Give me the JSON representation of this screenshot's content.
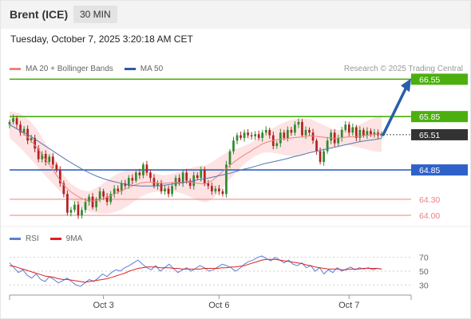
{
  "header": {
    "instrument": "Brent (ICE)",
    "timeframe": "30 MIN",
    "datetime": "Tuesday, October 7, 2025 3:20:18 AM CET"
  },
  "legend": {
    "ma20_label": "MA 20 + Bollinger Bands",
    "ma50_label": "MA 50",
    "credit": "Research © 2025 Trading Central"
  },
  "rsi_legend": {
    "rsi_label": "RSI",
    "ma_label": "9MA"
  },
  "colors": {
    "resistance": "#4caf0f",
    "pivot": "#2f62c8",
    "support": "#f08080",
    "current": "#333333",
    "ma20": "#f08080",
    "ma50": "#5577b0",
    "bollinger_fill": "#fde3e3",
    "candle_up": "#2e8b2e",
    "candle_down": "#b22222",
    "arrow": "#2a5ea8",
    "rsi": "#5b7fd4",
    "rsi_ma": "#e02020"
  },
  "chart_data": [
    {
      "type": "candlestick",
      "ylim": [
        63.88,
        66.6
      ],
      "levels": [
        {
          "label": "66.55",
          "value": 66.55,
          "kind": "resistance"
        },
        {
          "label": "65.85",
          "value": 65.85,
          "kind": "resistance"
        },
        {
          "label": "65.51",
          "value": 65.51,
          "kind": "current"
        },
        {
          "label": "64.85",
          "value": 64.85,
          "kind": "pivot"
        },
        {
          "label": "64.30",
          "value": 64.3,
          "kind": "support"
        },
        {
          "label": "64.00",
          "value": 64.0,
          "kind": "support"
        }
      ],
      "x_ticks": [
        {
          "label": "Oct 3",
          "index": 26
        },
        {
          "label": "Oct 6",
          "index": 58
        },
        {
          "label": "Oct 7",
          "index": 94
        }
      ],
      "closes": [
        65.75,
        65.82,
        65.7,
        65.55,
        65.62,
        65.4,
        65.45,
        65.25,
        65.05,
        65.15,
        65.0,
        65.1,
        64.95,
        64.85,
        64.6,
        64.4,
        64.05,
        64.1,
        64.2,
        64.0,
        64.1,
        64.25,
        64.35,
        64.15,
        64.3,
        64.45,
        64.35,
        64.25,
        64.4,
        64.5,
        64.45,
        64.6,
        64.55,
        64.7,
        64.65,
        64.8,
        64.75,
        64.95,
        64.8,
        64.7,
        64.55,
        64.6,
        64.45,
        64.5,
        64.4,
        64.55,
        64.7,
        64.6,
        64.8,
        64.65,
        64.55,
        64.75,
        64.7,
        64.85,
        64.6,
        64.55,
        64.45,
        64.5,
        64.45,
        64.4,
        64.95,
        65.2,
        65.4,
        65.5,
        65.45,
        65.55,
        65.5,
        65.48,
        65.52,
        65.45,
        65.55,
        65.6,
        65.5,
        65.3,
        65.35,
        65.55,
        65.45,
        65.6,
        65.55,
        65.7,
        65.75,
        65.5,
        65.6,
        65.55,
        65.4,
        65.2,
        65.0,
        65.2,
        65.4,
        65.55,
        65.35,
        65.45,
        65.6,
        65.7,
        65.55,
        65.65,
        65.45,
        65.6,
        65.5,
        65.58,
        65.52,
        65.55,
        65.5,
        65.51
      ],
      "ma20": [
        65.7,
        65.65,
        65.6,
        65.53,
        65.45,
        65.35,
        65.25,
        65.12,
        65.0,
        64.88,
        64.75,
        64.62,
        64.52,
        64.44,
        64.38,
        64.33,
        64.29,
        64.26,
        64.27,
        64.29,
        64.32,
        64.35,
        64.39,
        64.43,
        64.47,
        64.51,
        64.55,
        64.58,
        64.61,
        64.62,
        64.62,
        64.61,
        64.6,
        64.6,
        64.61,
        64.62,
        64.62,
        64.62,
        64.62,
        64.61,
        64.6,
        64.59,
        64.6,
        64.65,
        64.72,
        64.8,
        64.88,
        64.95,
        65.02,
        65.08,
        65.14,
        65.19,
        65.25,
        65.3,
        65.35,
        65.38,
        65.4,
        65.42,
        65.43,
        65.44,
        65.45,
        65.46,
        65.47,
        65.48,
        65.49,
        65.48,
        65.47,
        65.46,
        65.45,
        65.44,
        65.45,
        65.46,
        65.47,
        65.47,
        65.48,
        65.49,
        65.5,
        65.51,
        65.52,
        65.53
      ],
      "ma50": [
        65.7,
        65.62,
        65.55,
        65.47,
        65.38,
        65.29,
        65.2,
        65.11,
        65.02,
        64.94,
        64.86,
        64.79,
        64.73,
        64.68,
        64.64,
        64.61,
        64.58,
        64.56,
        64.55,
        64.55,
        64.55,
        64.56,
        64.58,
        64.6,
        64.62,
        64.64,
        64.67,
        64.69,
        64.72,
        64.75,
        64.78,
        64.82,
        64.86,
        64.89,
        64.93,
        64.97,
        65.0,
        65.03,
        65.06,
        65.1,
        65.13,
        65.17,
        65.2,
        65.23,
        65.26,
        65.29,
        65.32,
        65.35,
        65.38,
        65.4,
        65.42,
        65.44
      ],
      "projection": {
        "from": 65.51,
        "to": 66.55
      }
    },
    {
      "type": "line",
      "title": "RSI",
      "ylim": [
        20,
        80
      ],
      "ticks": [
        70,
        50,
        30
      ],
      "series": [
        {
          "name": "RSI",
          "values": [
            62,
            55,
            48,
            52,
            44,
            40,
            46,
            38,
            35,
            42,
            38,
            33,
            36,
            40,
            35,
            30,
            28,
            33,
            38,
            35,
            40,
            46,
            42,
            48,
            52,
            50,
            55,
            58,
            62,
            66,
            60,
            55,
            52,
            58,
            50,
            55,
            60,
            54,
            48,
            52,
            55,
            50,
            54,
            58,
            55,
            50,
            52,
            56,
            60,
            58,
            55,
            50,
            54,
            60,
            64,
            66,
            70,
            72,
            68,
            65,
            70,
            66,
            62,
            66,
            60,
            58,
            62,
            55,
            58,
            50,
            55,
            46,
            52,
            48,
            55,
            50,
            53,
            56,
            52,
            55,
            53,
            55,
            52,
            54,
            53
          ]
        },
        {
          "name": "9MA",
          "values": [
            58,
            57,
            55,
            53,
            51,
            49,
            47,
            45,
            43,
            42,
            41,
            39,
            38,
            38,
            37,
            36,
            35,
            34,
            35,
            36,
            37,
            38,
            39,
            41,
            43,
            45,
            47,
            50,
            52,
            54,
            55,
            56,
            56,
            56,
            55,
            55,
            55,
            54,
            54,
            53,
            53,
            53,
            53,
            53,
            54,
            54,
            54,
            54,
            55,
            55,
            56,
            56,
            57,
            58,
            60,
            62,
            64,
            66,
            67,
            67,
            67,
            66,
            65,
            64,
            63,
            62,
            61,
            59,
            58,
            56,
            55,
            54,
            53,
            53,
            53,
            52,
            52,
            53,
            53,
            53,
            54,
            54,
            54,
            54,
            53
          ]
        }
      ]
    }
  ]
}
